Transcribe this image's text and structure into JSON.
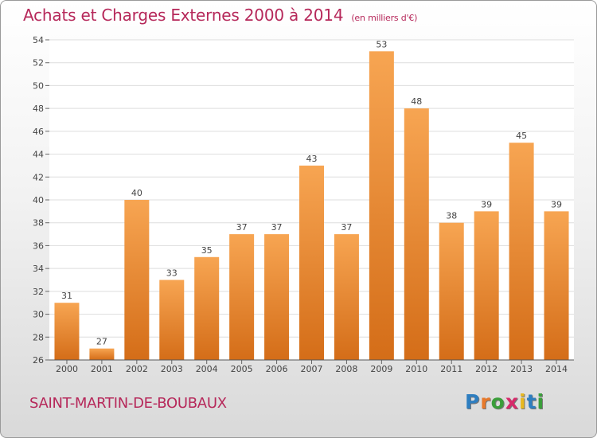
{
  "header": {
    "title": "Achats et Charges Externes 2000 à 2014",
    "unit": "(en milliers d'€)"
  },
  "footer": {
    "town": "SAINT-MARTIN-DE-BOUBAUX",
    "logo": "Proxiti"
  },
  "colors": {
    "accent": "#b6285a",
    "bar_top": "#f7a552",
    "bar_bottom": "#d46d18"
  },
  "chart_data": {
    "type": "bar",
    "title": "Achats et Charges Externes 2000 à 2014",
    "subtitle": "(en milliers d'€)",
    "xlabel": "",
    "ylabel": "",
    "categories": [
      "2000",
      "2001",
      "2002",
      "2003",
      "2004",
      "2005",
      "2006",
      "2007",
      "2008",
      "2009",
      "2010",
      "2011",
      "2012",
      "2013",
      "2014"
    ],
    "values": [
      31,
      27,
      40,
      33,
      35,
      37,
      37,
      43,
      37,
      53,
      48,
      38,
      39,
      45,
      39
    ],
    "ylim": [
      26,
      54
    ],
    "yticks": [
      26,
      28,
      30,
      32,
      34,
      36,
      38,
      40,
      42,
      44,
      46,
      48,
      50,
      52,
      54
    ],
    "grid": true,
    "legend": "none"
  }
}
